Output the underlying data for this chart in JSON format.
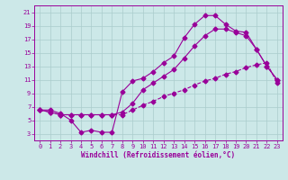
{
  "background_color": "#cce8e8",
  "grid_color": "#aacccc",
  "line_color": "#990099",
  "xlabel": "Windchill (Refroidissement éolien,°C)",
  "xlim": [
    -0.5,
    23.5
  ],
  "ylim": [
    2,
    22
  ],
  "xticks": [
    0,
    1,
    2,
    3,
    4,
    5,
    6,
    7,
    8,
    9,
    10,
    11,
    12,
    13,
    14,
    15,
    16,
    17,
    18,
    19,
    20,
    21,
    22,
    23
  ],
  "yticks": [
    3,
    5,
    7,
    9,
    11,
    13,
    15,
    17,
    19,
    21
  ],
  "curve1_x": [
    0,
    1,
    2,
    3,
    4,
    5,
    6,
    7,
    8,
    9,
    10,
    11,
    12,
    13,
    14,
    15,
    16,
    17,
    18,
    19,
    20,
    21,
    22,
    23
  ],
  "curve1_y": [
    6.5,
    6.5,
    6.0,
    5.0,
    3.2,
    3.5,
    3.2,
    3.2,
    9.2,
    10.8,
    11.2,
    12.2,
    13.5,
    14.5,
    17.2,
    19.2,
    20.5,
    20.5,
    19.2,
    18.2,
    18.0,
    15.5,
    13.0,
    11.0
  ],
  "curve2_x": [
    0,
    1,
    2,
    3,
    4,
    5,
    6,
    7,
    8,
    9,
    10,
    11,
    12,
    13,
    14,
    15,
    16,
    17,
    18,
    19,
    20,
    21,
    22,
    23
  ],
  "curve2_y": [
    6.5,
    6.2,
    5.8,
    5.8,
    5.8,
    5.8,
    5.8,
    5.8,
    6.2,
    7.5,
    9.5,
    10.5,
    11.5,
    12.5,
    14.2,
    16.0,
    17.5,
    18.5,
    18.5,
    18.0,
    17.5,
    15.5,
    13.0,
    11.0
  ],
  "curve3_x": [
    0,
    1,
    2,
    3,
    4,
    5,
    6,
    7,
    8,
    9,
    10,
    11,
    12,
    13,
    14,
    15,
    16,
    17,
    18,
    19,
    20,
    21,
    22,
    23
  ],
  "curve3_y": [
    6.5,
    6.2,
    5.8,
    5.8,
    5.8,
    5.8,
    5.8,
    5.8,
    5.8,
    6.5,
    7.2,
    7.8,
    8.5,
    9.0,
    9.5,
    10.2,
    10.8,
    11.2,
    11.8,
    12.2,
    12.8,
    13.2,
    13.5,
    10.5
  ]
}
